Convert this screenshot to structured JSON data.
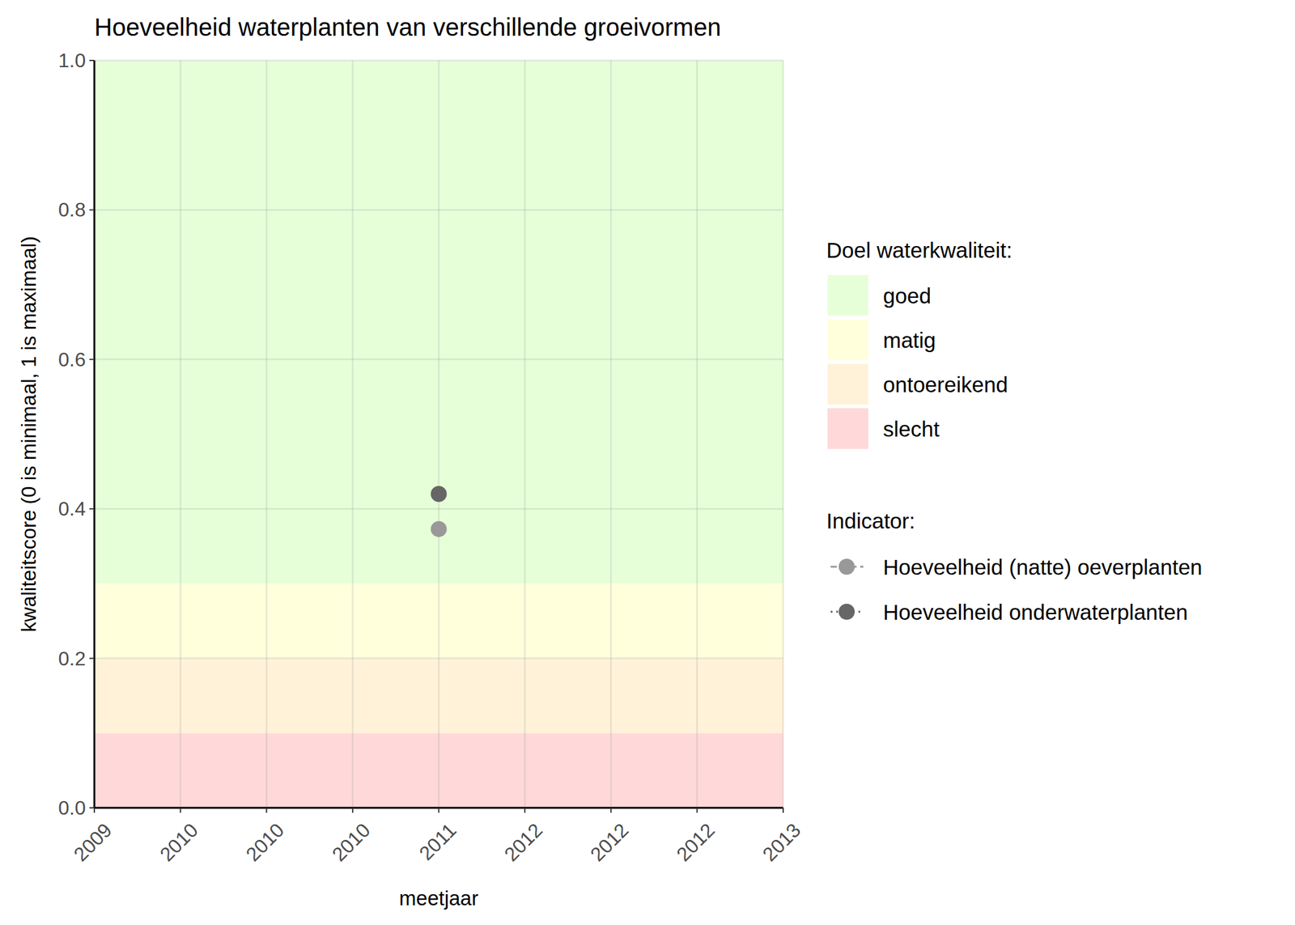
{
  "chart_data": {
    "type": "line",
    "title": "Hoeveelheid waterplanten van verschillende groeivormen",
    "x_label": "meetjaar",
    "y_label": "kwaliteitscore (0 is minimaal, 1 is maximaal)",
    "x": [
      2011
    ],
    "xlim": [
      2009,
      2013
    ],
    "xticks": [
      {
        "value": 2009,
        "label": "2009"
      },
      {
        "value": 2009.5,
        "label": "2010"
      },
      {
        "value": 2010,
        "label": "2010"
      },
      {
        "value": 2010.5,
        "label": "2010"
      },
      {
        "value": 2011,
        "label": "2011"
      },
      {
        "value": 2011.5,
        "label": "2012"
      },
      {
        "value": 2012,
        "label": "2012"
      },
      {
        "value": 2012.5,
        "label": "2012"
      },
      {
        "value": 2013,
        "label": "2013"
      }
    ],
    "ylim": [
      0,
      1
    ],
    "yticks": [
      {
        "value": 0,
        "label": "0.0"
      },
      0.2,
      0.4,
      0.6,
      0.8,
      {
        "value": 1,
        "label": "1.0"
      }
    ],
    "grid": true,
    "legend": "right",
    "bands_title": "Doel waterkwaliteit:",
    "bands": [
      {
        "name": "goed",
        "from": 0.3,
        "to": 1,
        "color": "#e6ffd9"
      },
      {
        "name": "matig",
        "from": 0.2,
        "to": 0.3,
        "color": "#ffffdc"
      },
      {
        "name": "ontoereikend",
        "from": 0.1,
        "to": 0.2,
        "color": "#fff2d9"
      },
      {
        "name": "slecht",
        "from": 0,
        "to": 0.1,
        "color": "#ffd9d9"
      }
    ],
    "legend_title": "Indicator:",
    "series": [
      {
        "name": "Hoeveelheid (natte) oeverplanten",
        "color": "#999999",
        "marker": "circle",
        "line_style": "dashed",
        "values": [
          0.373
        ]
      },
      {
        "name": "Hoeveelheid onderwaterplanten",
        "color": "#666666",
        "marker": "circle",
        "line_style": "dotted",
        "values": [
          0.42
        ]
      }
    ]
  }
}
